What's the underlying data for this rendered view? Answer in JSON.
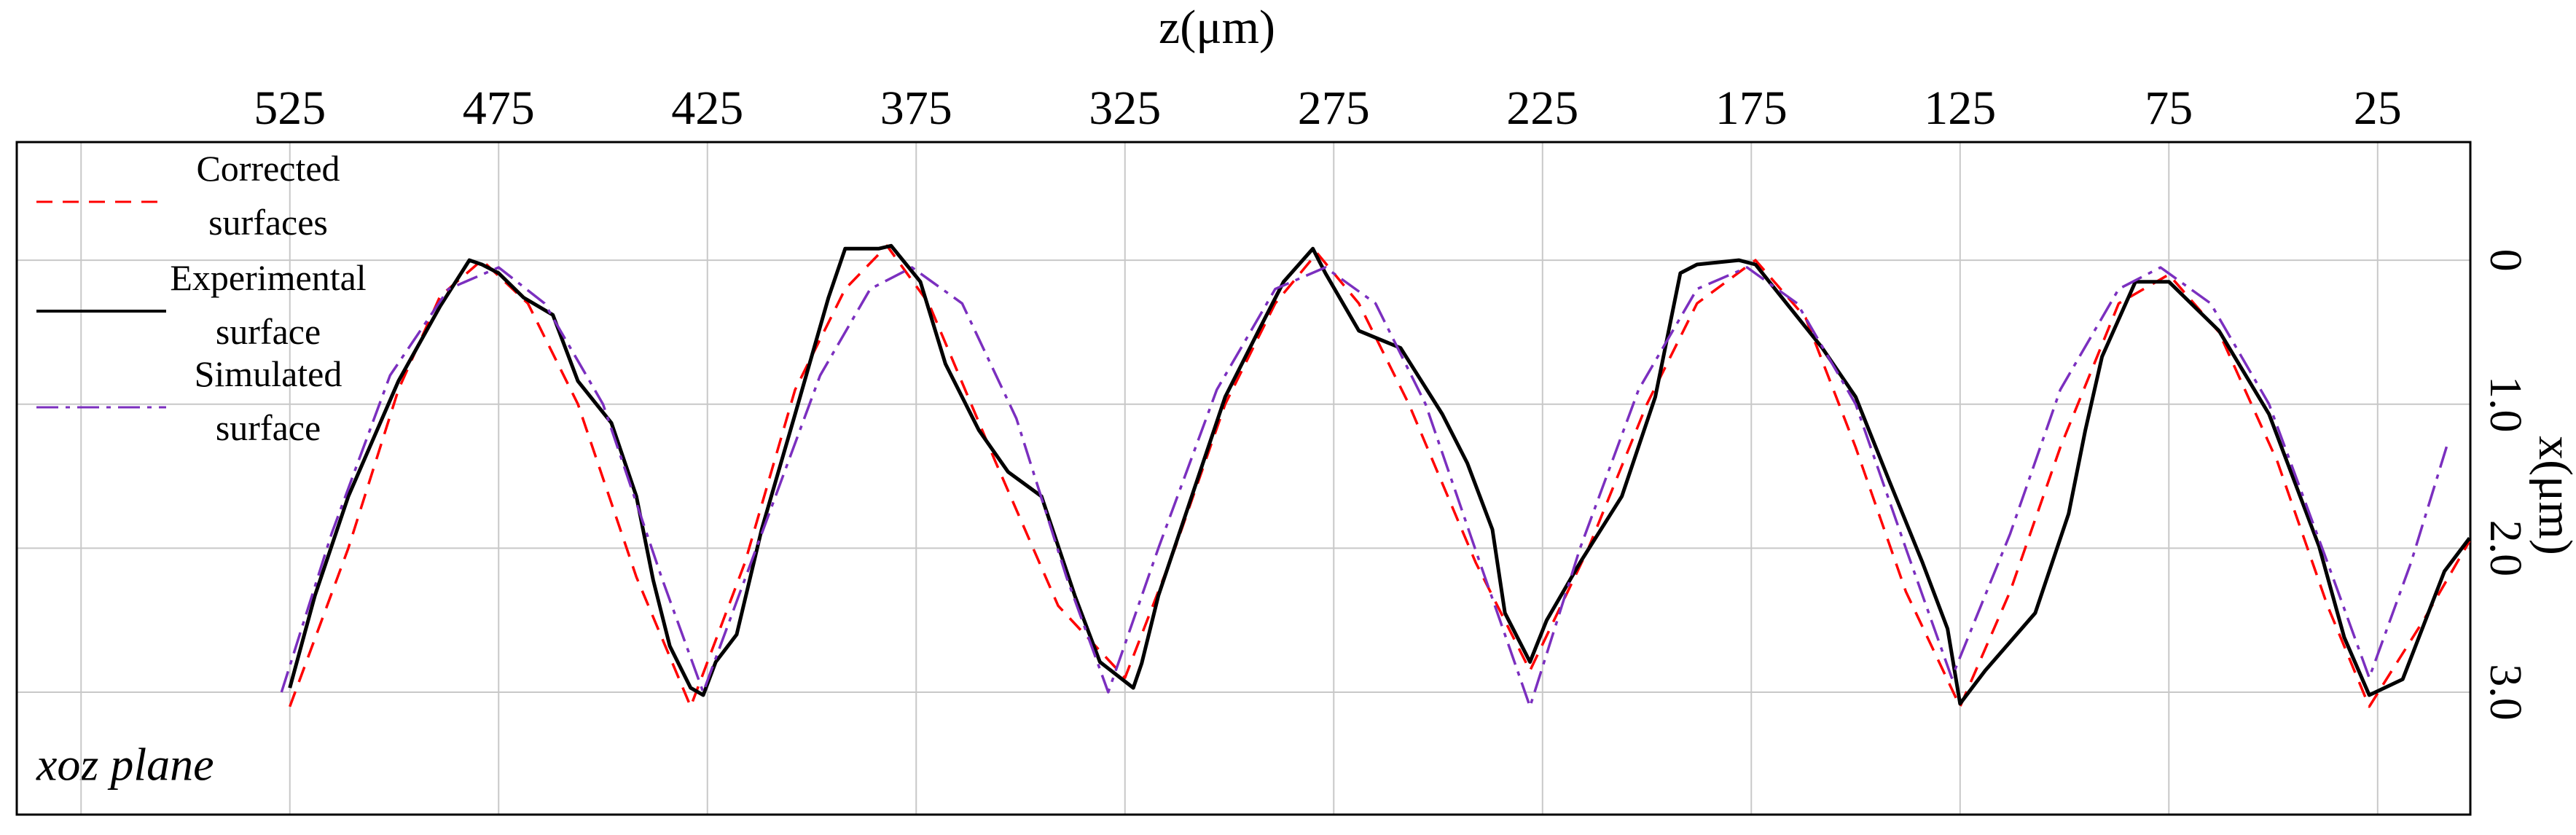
{
  "chart_data": {
    "type": "line",
    "x_label": "z(μm)",
    "y_label": "x(μm)",
    "annotation": "xoz plane",
    "xaxis_position": "top",
    "yaxis_position": "right",
    "x_inverted": true,
    "y_inverted": true,
    "xlim": [
      2.8,
      590.4
    ],
    "ylim": [
      -0.82,
      3.85
    ],
    "xticks": [
      25,
      75,
      125,
      175,
      225,
      275,
      325,
      375,
      425,
      475,
      525,
      {
        "value": 575,
        "label": null
      }
    ],
    "yticks": [
      0,
      {
        "value": 1,
        "label": "1.0"
      },
      {
        "value": 2,
        "label": "2.0"
      },
      {
        "value": 3,
        "label": "3.0"
      }
    ],
    "grid": true,
    "legend": "upper left",
    "series": [
      {
        "name": "Corrected surfaces",
        "color": "#ff0000",
        "style": "dashed",
        "x": [
          525,
          511,
          499,
          489,
          479,
          468,
          456,
          442,
          429,
          416,
          404,
          392,
          382,
          372,
          356,
          341,
          325,
          313,
          301,
          289,
          279,
          269,
          257,
          241,
          228,
          214,
          200,
          188,
          174,
          162,
          150,
          138,
          125,
          113,
          101,
          87,
          75,
          63,
          49,
          37,
          27,
          14,
          3
        ],
        "values": [
          3.1,
          2.0,
          0.9,
          0.25,
          0,
          0.3,
          1.0,
          2.2,
          3.1,
          2.1,
          0.9,
          0.2,
          -0.1,
          0.3,
          1.4,
          2.4,
          2.9,
          2.0,
          1.0,
          0.3,
          -0.05,
          0.3,
          1.0,
          2.1,
          2.85,
          2.0,
          1.0,
          0.3,
          0,
          0.4,
          1.3,
          2.3,
          3.1,
          2.3,
          1.3,
          0.3,
          0.1,
          0.5,
          1.4,
          2.4,
          3.1,
          2.5,
          1.95
        ]
      },
      {
        "name": "Experimental surface",
        "color": "#000000",
        "style": "solid",
        "x": [
          525,
          519,
          511,
          499,
          489,
          482,
          479,
          475,
          469,
          462,
          456,
          448,
          442,
          438,
          434,
          429,
          426,
          423,
          418,
          412,
          404,
          396,
          392,
          384,
          381,
          374,
          368,
          360,
          353,
          345,
          337,
          331,
          323,
          321,
          317,
          309,
          301,
          293,
          287,
          280,
          277,
          269,
          259,
          249,
          243,
          237,
          234,
          228,
          224,
          216,
          206,
          198,
          192,
          188,
          178,
          174,
          166,
          158,
          150,
          142,
          134,
          128,
          125,
          119,
          107,
          99,
          95,
          91,
          83,
          75,
          63,
          51,
          39,
          33,
          27,
          19,
          9,
          3
        ],
        "values": [
          2.97,
          2.33,
          1.64,
          0.84,
          0.32,
          0,
          0.03,
          0.09,
          0.26,
          0.38,
          0.84,
          1.13,
          1.64,
          2.22,
          2.68,
          2.97,
          3.02,
          2.79,
          2.6,
          1.87,
          1.07,
          0.26,
          -0.08,
          -0.08,
          -0.1,
          0.15,
          0.72,
          1.18,
          1.47,
          1.64,
          2.33,
          2.79,
          2.97,
          2.8,
          2.33,
          1.64,
          0.95,
          0.49,
          0.15,
          -0.08,
          0.09,
          0.49,
          0.61,
          1.07,
          1.41,
          1.87,
          2.45,
          2.79,
          2.5,
          2.1,
          1.64,
          0.95,
          0.09,
          0.03,
          0,
          0.03,
          0.32,
          0.61,
          0.95,
          1.53,
          2.1,
          2.56,
          3.08,
          2.85,
          2.45,
          1.76,
          1.18,
          0.67,
          0.15,
          0.15,
          0.49,
          1.07,
          1.99,
          2.62,
          3.02,
          2.91,
          2.16,
          1.93
        ]
      },
      {
        "name": "Simulated surface",
        "color": "#7b2fbf",
        "style": "dashdot",
        "x": [
          527,
          515,
          501,
          487,
          475,
          464,
          450,
          436,
          426,
          412,
          398,
          386,
          376,
          364,
          351,
          339,
          329,
          317,
          303,
          289,
          277,
          265,
          253,
          240,
          228,
          216,
          202,
          188,
          176,
          164,
          150,
          138,
          127,
          113,
          101,
          87,
          77,
          65,
          51,
          37,
          27,
          17,
          8
        ],
        "values": [
          3.0,
          1.9,
          0.8,
          0.2,
          0.05,
          0.3,
          1.0,
          2.2,
          3.0,
          1.9,
          0.8,
          0.2,
          0.05,
          0.3,
          1.1,
          2.2,
          3.0,
          2.0,
          0.9,
          0.2,
          0.05,
          0.3,
          1.0,
          2.1,
          3.1,
          2.0,
          0.9,
          0.2,
          0.05,
          0.3,
          1.0,
          2.0,
          2.9,
          1.9,
          0.9,
          0.2,
          0.05,
          0.3,
          1.0,
          2.1,
          2.9,
          2.1,
          1.25
        ]
      }
    ]
  }
}
